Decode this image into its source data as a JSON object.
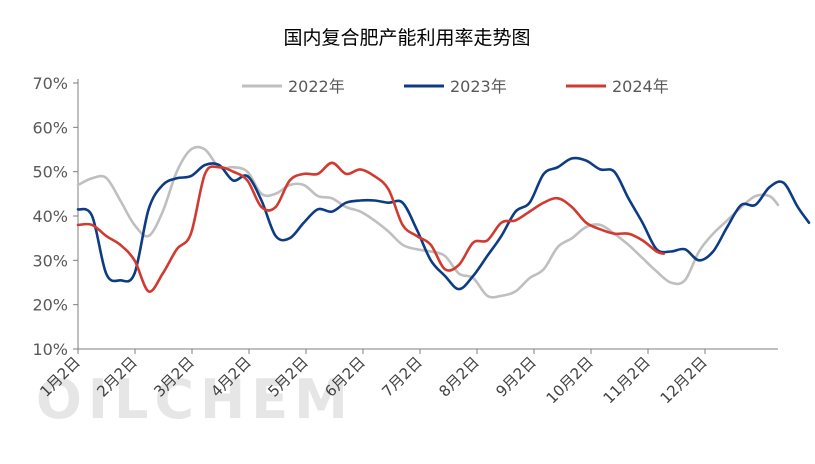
{
  "chart_data": {
    "type": "line",
    "title": "国内复合肥产能利用率走势图",
    "xlabel": "",
    "ylabel": "",
    "x_tick_labels": [
      "1月2日",
      "2月2日",
      "3月2日",
      "4月2日",
      "5月2日",
      "6月2日",
      "7月2日",
      "8月2日",
      "9月2日",
      "10月2日",
      "11月2日",
      "12月2日"
    ],
    "y_tick_labels": [
      "10%",
      "20%",
      "30%",
      "40%",
      "50%",
      "60%",
      "70%"
    ],
    "ylim": [
      10,
      70
    ],
    "xlim_weeks": [
      0,
      49.6
    ],
    "grid": false,
    "legend_position": "top",
    "watermark": "OILCHEM",
    "series": [
      {
        "name": "2022年",
        "color": "#BFBFBF",
        "points": [
          [
            0,
            47
          ],
          [
            1.0,
            48.5
          ],
          [
            2.0,
            48.6
          ],
          [
            3.0,
            43.5
          ],
          [
            4.0,
            38.0
          ],
          [
            5.0,
            35.5
          ],
          [
            6.0,
            41.0
          ],
          [
            7.0,
            50.0
          ],
          [
            8.0,
            55.0
          ],
          [
            9.0,
            55.0
          ],
          [
            10.0,
            51.0
          ],
          [
            11.0,
            51.0
          ],
          [
            12.0,
            50.0
          ],
          [
            13.0,
            45.0
          ],
          [
            14.0,
            45.0
          ],
          [
            15.0,
            47.0
          ],
          [
            16.0,
            47.0
          ],
          [
            17.0,
            44.5
          ],
          [
            18.0,
            44.0
          ],
          [
            19.0,
            42.0
          ],
          [
            20.0,
            41.0
          ],
          [
            21.0,
            39.0
          ],
          [
            22.0,
            36.5
          ],
          [
            23.0,
            33.5
          ],
          [
            24.0,
            32.5
          ],
          [
            25.0,
            32.0
          ],
          [
            26.0,
            31.0
          ],
          [
            27.0,
            27.0
          ],
          [
            28.0,
            26.0
          ],
          [
            29.0,
            22.0
          ],
          [
            30.0,
            22.0
          ],
          [
            31.0,
            23.0
          ],
          [
            32.0,
            26.0
          ],
          [
            33.0,
            28.0
          ],
          [
            34.0,
            33.0
          ],
          [
            35.0,
            35.0
          ],
          [
            36.0,
            37.5
          ],
          [
            37.0,
            38.0
          ],
          [
            38.0,
            36.0
          ],
          [
            39.0,
            33.5
          ],
          [
            40.0,
            30.5
          ],
          [
            41.0,
            27.5
          ],
          [
            42.0,
            25.0
          ],
          [
            43.0,
            25.5
          ],
          [
            44.0,
            32.0
          ],
          [
            45.0,
            36.0
          ],
          [
            46.0,
            39.0
          ],
          [
            47.0,
            42.0
          ],
          [
            48.0,
            44.5
          ],
          [
            49.0,
            44.5
          ],
          [
            49.6,
            42.5
          ]
        ]
      },
      {
        "name": "2023年",
        "color": "#0D3C84",
        "points": [
          [
            0,
            41.5
          ],
          [
            1.0,
            40.0
          ],
          [
            2.0,
            27.0
          ],
          [
            3.0,
            25.5
          ],
          [
            4.0,
            27.0
          ],
          [
            5.0,
            41.5
          ],
          [
            6.0,
            47.0
          ],
          [
            7.0,
            48.5
          ],
          [
            8.0,
            49.0
          ],
          [
            9.0,
            51.5
          ],
          [
            10.0,
            51.5
          ],
          [
            11.0,
            48.0
          ],
          [
            12.0,
            49.0
          ],
          [
            13.0,
            43.5
          ],
          [
            14.0,
            35.5
          ],
          [
            15.0,
            35.0
          ],
          [
            16.0,
            38.5
          ],
          [
            17.0,
            41.5
          ],
          [
            18.0,
            41.0
          ],
          [
            19.0,
            43.0
          ],
          [
            20.0,
            43.5
          ],
          [
            21.0,
            43.5
          ],
          [
            22.0,
            43.0
          ],
          [
            23.0,
            43.0
          ],
          [
            24.0,
            37.0
          ],
          [
            25.0,
            30.0
          ],
          [
            26.0,
            26.5
          ],
          [
            27.0,
            23.5
          ],
          [
            28.0,
            26.5
          ],
          [
            29.0,
            31.0
          ],
          [
            30.0,
            35.5
          ],
          [
            31.0,
            41.0
          ],
          [
            32.0,
            43.0
          ],
          [
            33.0,
            49.5
          ],
          [
            34.0,
            51.0
          ],
          [
            35.0,
            53.0
          ],
          [
            36.0,
            52.5
          ],
          [
            37.0,
            50.5
          ],
          [
            38.0,
            50.0
          ],
          [
            39.0,
            44.0
          ],
          [
            40.0,
            38.5
          ],
          [
            41.0,
            32.5
          ],
          [
            42.0,
            32.0
          ],
          [
            43.0,
            32.5
          ],
          [
            44.0,
            30.0
          ],
          [
            45.0,
            32.0
          ],
          [
            46.0,
            37.5
          ],
          [
            47.0,
            42.5
          ],
          [
            48.0,
            42.5
          ],
          [
            49.0,
            46.5
          ],
          [
            50.0,
            47.5
          ],
          [
            51.0,
            42.0
          ],
          [
            51.8,
            38.5
          ]
        ]
      },
      {
        "name": "2024年",
        "color": "#D13A2F",
        "points": [
          [
            0,
            38
          ],
          [
            1.0,
            38.0
          ],
          [
            2.0,
            35.5
          ],
          [
            3.0,
            33.5
          ],
          [
            4.0,
            30.0
          ],
          [
            5.0,
            23.0
          ],
          [
            6.0,
            27.0
          ],
          [
            7.0,
            32.5
          ],
          [
            8.0,
            36.0
          ],
          [
            9.0,
            49.5
          ],
          [
            10.0,
            51.0
          ],
          [
            11.0,
            50.0
          ],
          [
            12.0,
            48.0
          ],
          [
            13.0,
            42.0
          ],
          [
            14.0,
            42.0
          ],
          [
            15.0,
            48.0
          ],
          [
            16.0,
            49.5
          ],
          [
            17.0,
            49.5
          ],
          [
            18.0,
            52.0
          ],
          [
            19.0,
            49.5
          ],
          [
            20.0,
            50.5
          ],
          [
            21.0,
            49.0
          ],
          [
            22.0,
            46.0
          ],
          [
            23.0,
            38.0
          ],
          [
            24.0,
            35.5
          ],
          [
            25.0,
            33.5
          ],
          [
            26.0,
            28.0
          ],
          [
            27.0,
            29.0
          ],
          [
            28.0,
            34.0
          ],
          [
            29.0,
            34.5
          ],
          [
            30.0,
            38.5
          ],
          [
            31.0,
            39.0
          ],
          [
            32.0,
            41.0
          ],
          [
            33.0,
            43.0
          ],
          [
            34.0,
            44.0
          ],
          [
            35.0,
            42.0
          ],
          [
            36.0,
            38.5
          ],
          [
            37.0,
            37.0
          ],
          [
            38.0,
            36.0
          ],
          [
            39.0,
            36.0
          ],
          [
            40.0,
            34.5
          ],
          [
            41.0,
            32.0
          ],
          [
            41.5,
            31.5
          ]
        ]
      }
    ]
  }
}
